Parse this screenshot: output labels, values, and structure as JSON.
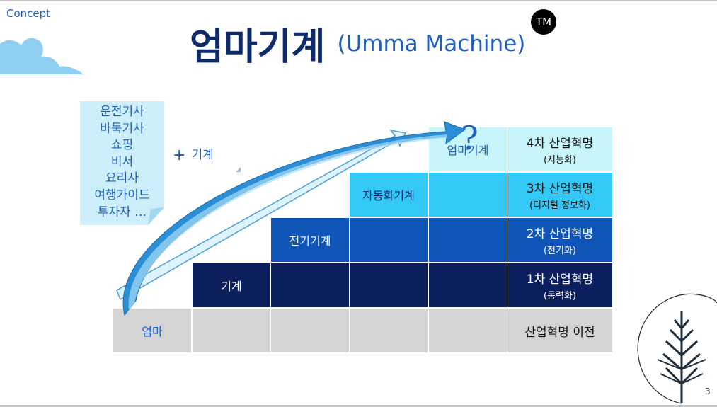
{
  "header": {
    "section_label": "Concept",
    "title_ko": "엄마기계",
    "title_en": "(Umma Machine)",
    "tm_badge": "TM"
  },
  "note": {
    "lines": [
      "운전기사",
      "바둑기사",
      "쇼핑",
      "비서",
      "요리사",
      "여행가이드",
      "투자자 …"
    ],
    "plus_label": "기계"
  },
  "stairs": {
    "steps": [
      {
        "label": "엄마",
        "color": "#d4d4d4",
        "text_color": "#1f5fbf"
      },
      {
        "label": "기계",
        "color": "#0b1f5c",
        "text_color": "#ffffff"
      },
      {
        "label": "전기기계",
        "color": "#0f55b8",
        "text_color": "#ffffff"
      },
      {
        "label": "자동화기계",
        "color": "#33c8f5",
        "text_color": "#0d2a6b"
      },
      {
        "label": "엄마기계",
        "color": "#c8f4fb",
        "text_color": "#1f5fbf"
      }
    ],
    "revolutions": [
      {
        "title": "4차 산업혁명",
        "sub": "(지능화)",
        "color": "#c8f4fb"
      },
      {
        "title": "3차 산업혁명",
        "sub": "(디지털 정보화)",
        "color": "#33c8f5"
      },
      {
        "title": "2차 산업혁명",
        "sub": "(전기화)",
        "color": "#0f55b8"
      },
      {
        "title": "1차 산업혁명",
        "sub": "(동력화)",
        "color": "#0b1f5c"
      },
      {
        "title": "산업혁명 이전",
        "sub": "",
        "color": "#d4d4d4"
      }
    ],
    "question_mark": "?"
  },
  "colors": {
    "title": "#0d2a6b",
    "accent": "#1f5fbf",
    "arrow": "#2a8fd6"
  },
  "icons": [
    "cloud-icon",
    "tree-icon",
    "arrow-icon"
  ],
  "footer": {
    "page_number": "3"
  }
}
